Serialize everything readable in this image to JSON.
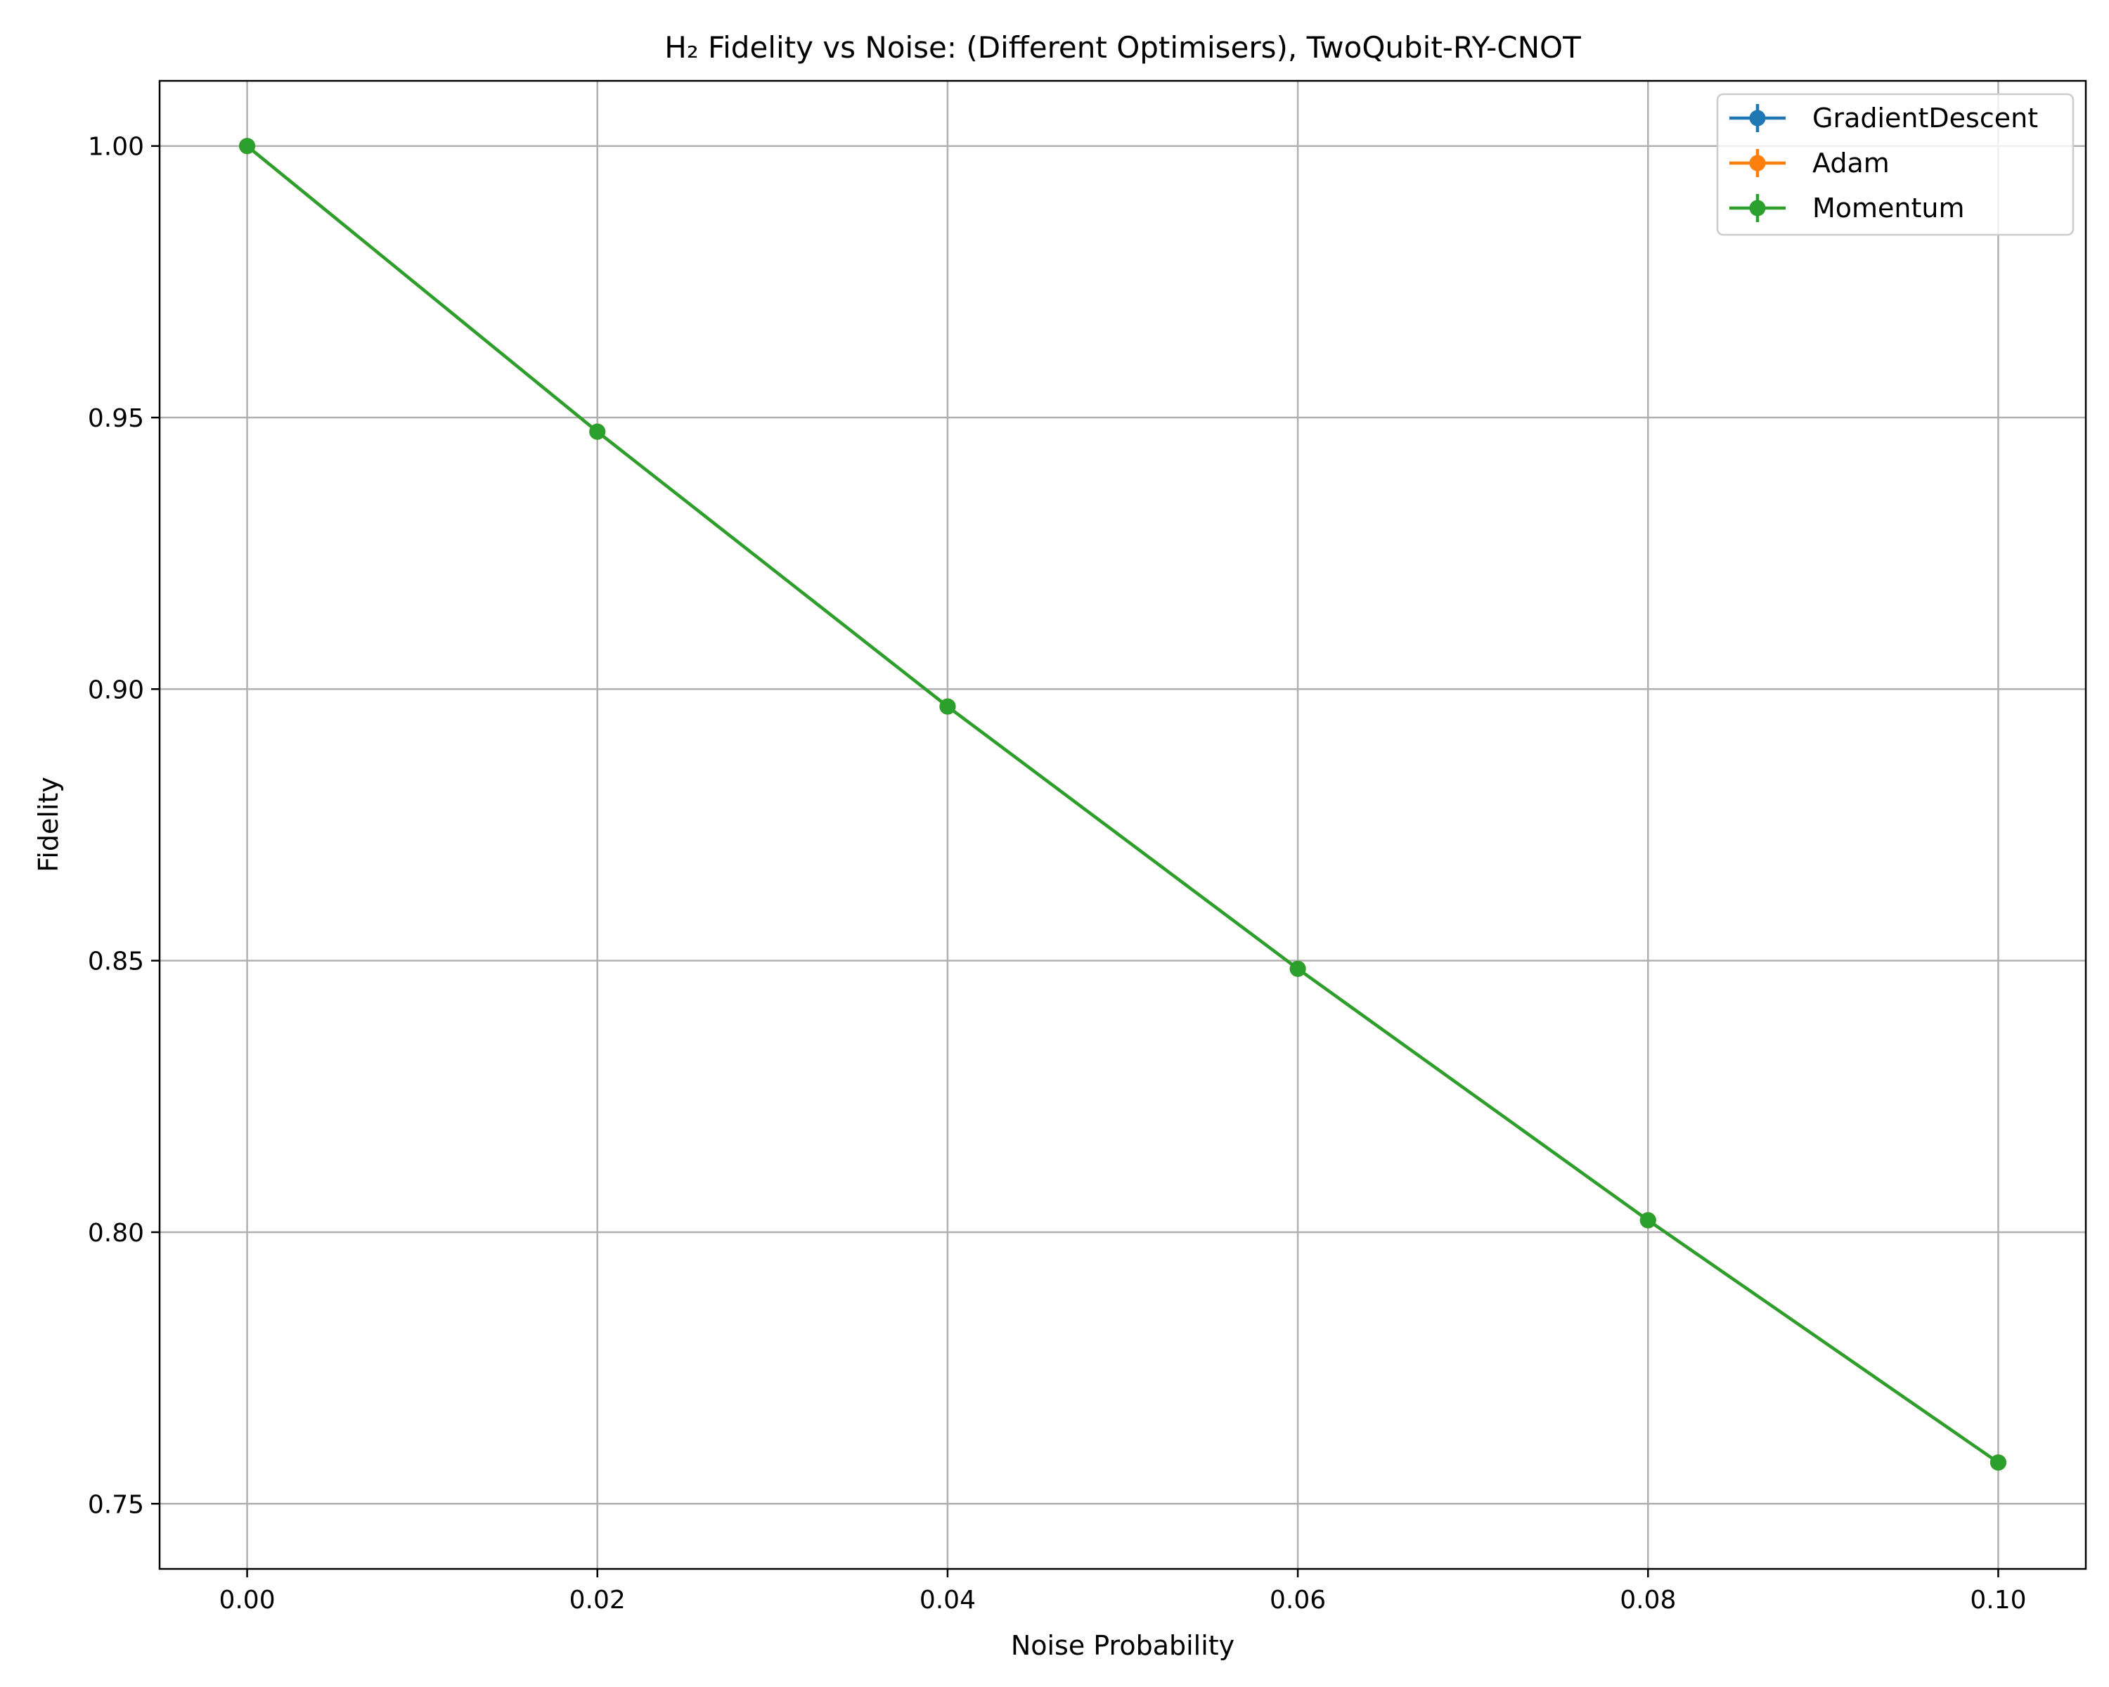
{
  "chart_data": {
    "type": "line",
    "title": "H₂ Fidelity vs Noise: (Different Optimisers), TwoQubit-RY-CNOT",
    "xlabel": "Noise Probability",
    "ylabel": "Fidelity",
    "x": [
      0.0,
      0.02,
      0.04,
      0.06,
      0.08,
      0.1
    ],
    "xlim": [
      -0.005,
      0.105
    ],
    "ylim": [
      0.738,
      1.012
    ],
    "xticks": [
      0.0,
      0.02,
      0.04,
      0.06,
      0.08,
      0.1
    ],
    "xtick_labels": [
      "0.00",
      "0.02",
      "0.04",
      "0.06",
      "0.08",
      "0.10"
    ],
    "yticks": [
      0.75,
      0.8,
      0.85,
      0.9,
      0.95,
      1.0
    ],
    "ytick_labels": [
      "0.75",
      "0.80",
      "0.85",
      "0.90",
      "0.95",
      "1.00"
    ],
    "grid": true,
    "legend_position": "top-right",
    "series": [
      {
        "name": "GradientDescent",
        "color": "#1f77b4",
        "values": [
          1.0,
          0.9474,
          0.8968,
          0.8485,
          0.8022,
          0.7576
        ]
      },
      {
        "name": "Adam",
        "color": "#ff7f0e",
        "values": [
          1.0,
          0.9474,
          0.8968,
          0.8485,
          0.8022,
          0.7576
        ]
      },
      {
        "name": "Momentum",
        "color": "#2ca02c",
        "values": [
          1.0,
          0.9474,
          0.8968,
          0.8485,
          0.8022,
          0.7576
        ]
      }
    ]
  }
}
